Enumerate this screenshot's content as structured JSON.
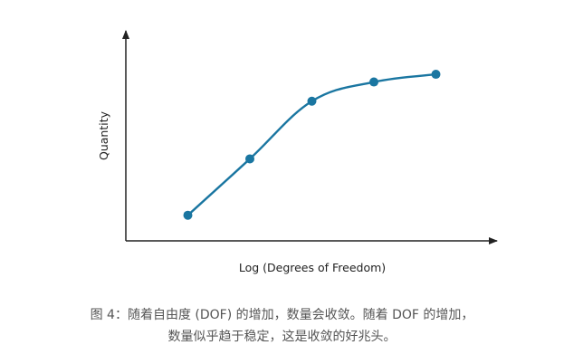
{
  "chart_data": {
    "type": "line",
    "title": "",
    "xlabel": "Log (Degrees of Freedom)",
    "ylabel": "Quantity",
    "x": [
      1,
      2,
      3,
      4,
      5
    ],
    "series": [
      {
        "values": [
          1.0,
          3.2,
          5.45,
          6.2,
          6.5
        ]
      }
    ],
    "ylim": [
      0,
      8.5
    ],
    "xlim": [
      0,
      6
    ],
    "grid": false,
    "legend": "none",
    "colors": {
      "line": "#1a76a1",
      "marker": "#1a76a1",
      "axis": "#222222"
    }
  },
  "caption": {
    "line1": "图 4：随着自由度 (DOF) 的增加，数量会收敛。随着 DOF 的增加，",
    "line2": "数量似乎趋于稳定，这是收敛的好兆头。"
  }
}
